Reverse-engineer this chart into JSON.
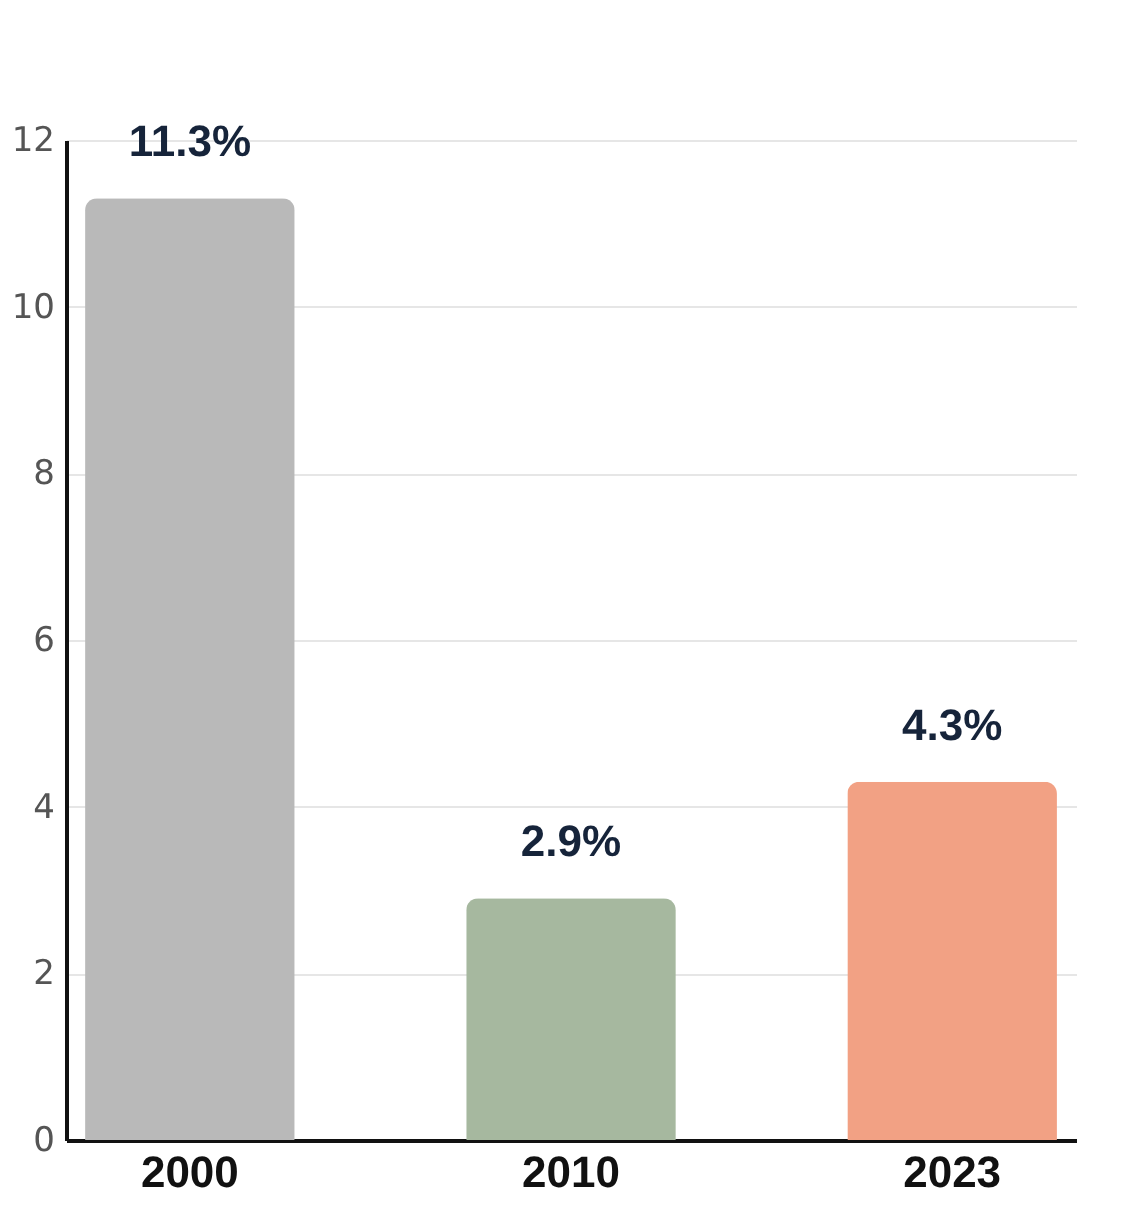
{
  "chart_data": {
    "type": "bar",
    "categories": [
      "2000",
      "2010",
      "2023"
    ],
    "values": [
      11.3,
      2.9,
      4.3
    ],
    "colors": [
      "#b9b9b9",
      "#a6b89f",
      "#f2a184"
    ],
    "value_labels": [
      "11.3%",
      "2.9%",
      "4.3%"
    ],
    "ylim": [
      0,
      12
    ],
    "yticks": [
      0,
      2,
      4,
      6,
      8,
      10,
      12
    ],
    "grid": "y"
  }
}
